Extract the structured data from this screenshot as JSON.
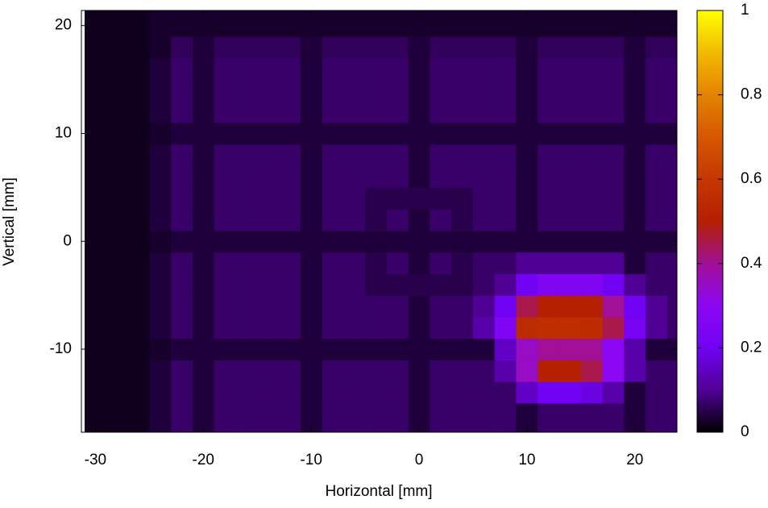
{
  "chart_data": {
    "type": "heatmap",
    "xlabel": "Horizontal [mm]",
    "ylabel": "Vertical [mm]",
    "xlim": [
      -31.3,
      23.9
    ],
    "ylim": [
      -17.7,
      21.4
    ],
    "zlim": [
      0,
      1
    ],
    "xticks": [
      -30,
      -20,
      -10,
      0,
      10,
      20
    ],
    "yticks": [
      -10,
      0,
      10,
      20
    ],
    "zticks": [
      0,
      0.2,
      0.4,
      0.6,
      0.8,
      1
    ],
    "palette": [
      "#000000",
      "#510096",
      "#7202f3",
      "#8c07f3",
      "#a11096",
      "#b42000",
      "#c63700",
      "#d55700",
      "#e48300",
      "#f2ba00",
      "#ffff00"
    ],
    "x": [
      -30,
      -28,
      -26,
      -24,
      -22,
      -20,
      -18,
      -16,
      -14,
      -12,
      -10,
      -8,
      -6,
      -4,
      -2,
      0,
      2,
      4,
      6,
      8,
      10,
      12,
      14,
      16,
      18,
      20,
      22,
      24
    ],
    "y": [
      -18,
      -16,
      -14,
      -12,
      -10,
      -8,
      -6,
      -4,
      -2,
      0,
      2,
      4,
      6,
      8,
      10,
      12,
      14,
      16,
      18,
      20,
      22
    ],
    "z": [
      [
        0.02,
        0.02,
        0.02,
        0.04,
        0.07,
        0.04,
        0.07,
        0.07,
        0.07,
        0.07,
        0.04,
        0.07,
        0.07,
        0.07,
        0.07,
        0.04,
        0.07,
        0.07,
        0.07,
        0.07,
        0.04,
        0.07,
        0.07,
        0.07,
        0.07,
        0.04,
        0.07,
        0.07
      ],
      [
        0.02,
        0.02,
        0.02,
        0.04,
        0.07,
        0.04,
        0.07,
        0.07,
        0.07,
        0.07,
        0.04,
        0.07,
        0.07,
        0.07,
        0.07,
        0.04,
        0.07,
        0.07,
        0.07,
        0.07,
        0.04,
        0.07,
        0.07,
        0.07,
        0.07,
        0.04,
        0.07,
        0.07
      ],
      [
        0.02,
        0.02,
        0.02,
        0.04,
        0.07,
        0.04,
        0.07,
        0.07,
        0.07,
        0.07,
        0.04,
        0.07,
        0.07,
        0.07,
        0.07,
        0.04,
        0.07,
        0.07,
        0.07,
        0.07,
        0.15,
        0.2,
        0.2,
        0.18,
        0.12,
        0.04,
        0.07,
        0.07
      ],
      [
        0.02,
        0.02,
        0.02,
        0.04,
        0.07,
        0.04,
        0.07,
        0.07,
        0.07,
        0.07,
        0.04,
        0.07,
        0.07,
        0.07,
        0.07,
        0.04,
        0.07,
        0.07,
        0.07,
        0.12,
        0.35,
        0.5,
        0.5,
        0.45,
        0.3,
        0.12,
        0.07,
        0.07
      ],
      [
        0.02,
        0.02,
        0.02,
        0.03,
        0.04,
        0.04,
        0.04,
        0.04,
        0.04,
        0.04,
        0.04,
        0.04,
        0.04,
        0.04,
        0.04,
        0.04,
        0.04,
        0.04,
        0.04,
        0.15,
        0.35,
        0.4,
        0.4,
        0.4,
        0.3,
        0.12,
        0.04,
        0.04
      ],
      [
        0.02,
        0.02,
        0.02,
        0.04,
        0.07,
        0.04,
        0.07,
        0.07,
        0.07,
        0.07,
        0.04,
        0.07,
        0.07,
        0.07,
        0.07,
        0.04,
        0.07,
        0.07,
        0.12,
        0.25,
        0.55,
        0.56,
        0.56,
        0.55,
        0.45,
        0.22,
        0.1,
        0.07
      ],
      [
        0.02,
        0.02,
        0.02,
        0.04,
        0.07,
        0.04,
        0.07,
        0.07,
        0.07,
        0.07,
        0.04,
        0.07,
        0.07,
        0.07,
        0.07,
        0.04,
        0.07,
        0.07,
        0.1,
        0.2,
        0.45,
        0.5,
        0.5,
        0.5,
        0.4,
        0.2,
        0.1,
        0.07
      ],
      [
        0.02,
        0.02,
        0.02,
        0.04,
        0.07,
        0.04,
        0.07,
        0.07,
        0.07,
        0.07,
        0.04,
        0.07,
        0.07,
        0.05,
        0.05,
        0.05,
        0.05,
        0.05,
        0.07,
        0.1,
        0.2,
        0.25,
        0.25,
        0.25,
        0.2,
        0.1,
        0.07,
        0.07
      ],
      [
        0.02,
        0.02,
        0.02,
        0.04,
        0.07,
        0.04,
        0.07,
        0.07,
        0.07,
        0.07,
        0.04,
        0.07,
        0.07,
        0.05,
        0.07,
        0.04,
        0.07,
        0.05,
        0.07,
        0.07,
        0.1,
        0.1,
        0.1,
        0.1,
        0.1,
        0.04,
        0.07,
        0.07
      ],
      [
        0.02,
        0.02,
        0.02,
        0.03,
        0.04,
        0.04,
        0.04,
        0.04,
        0.04,
        0.04,
        0.04,
        0.04,
        0.04,
        0.04,
        0.04,
        0.04,
        0.04,
        0.04,
        0.04,
        0.04,
        0.04,
        0.04,
        0.04,
        0.04,
        0.04,
        0.04,
        0.04,
        0.04
      ],
      [
        0.02,
        0.02,
        0.02,
        0.04,
        0.07,
        0.04,
        0.07,
        0.07,
        0.07,
        0.07,
        0.04,
        0.07,
        0.07,
        0.05,
        0.07,
        0.04,
        0.07,
        0.05,
        0.07,
        0.07,
        0.04,
        0.07,
        0.07,
        0.07,
        0.07,
        0.04,
        0.07,
        0.07
      ],
      [
        0.02,
        0.02,
        0.02,
        0.04,
        0.07,
        0.04,
        0.07,
        0.07,
        0.07,
        0.07,
        0.04,
        0.07,
        0.07,
        0.05,
        0.05,
        0.05,
        0.05,
        0.05,
        0.07,
        0.07,
        0.04,
        0.07,
        0.07,
        0.07,
        0.07,
        0.04,
        0.07,
        0.07
      ],
      [
        0.02,
        0.02,
        0.02,
        0.04,
        0.07,
        0.04,
        0.07,
        0.07,
        0.07,
        0.07,
        0.04,
        0.07,
        0.07,
        0.07,
        0.07,
        0.04,
        0.07,
        0.07,
        0.07,
        0.07,
        0.04,
        0.07,
        0.07,
        0.07,
        0.07,
        0.04,
        0.07,
        0.07
      ],
      [
        0.02,
        0.02,
        0.02,
        0.04,
        0.07,
        0.04,
        0.07,
        0.07,
        0.07,
        0.07,
        0.04,
        0.07,
        0.07,
        0.07,
        0.07,
        0.04,
        0.07,
        0.07,
        0.07,
        0.07,
        0.04,
        0.07,
        0.07,
        0.07,
        0.07,
        0.04,
        0.07,
        0.07
      ],
      [
        0.02,
        0.02,
        0.02,
        0.03,
        0.04,
        0.04,
        0.04,
        0.04,
        0.04,
        0.04,
        0.04,
        0.04,
        0.04,
        0.04,
        0.04,
        0.04,
        0.04,
        0.04,
        0.04,
        0.04,
        0.04,
        0.04,
        0.04,
        0.04,
        0.04,
        0.04,
        0.04,
        0.04
      ],
      [
        0.02,
        0.02,
        0.02,
        0.04,
        0.07,
        0.04,
        0.07,
        0.07,
        0.07,
        0.07,
        0.04,
        0.07,
        0.07,
        0.07,
        0.07,
        0.04,
        0.07,
        0.07,
        0.07,
        0.07,
        0.04,
        0.07,
        0.07,
        0.07,
        0.07,
        0.04,
        0.07,
        0.07
      ],
      [
        0.02,
        0.02,
        0.02,
        0.04,
        0.07,
        0.04,
        0.07,
        0.07,
        0.07,
        0.07,
        0.04,
        0.07,
        0.07,
        0.07,
        0.07,
        0.04,
        0.07,
        0.07,
        0.07,
        0.07,
        0.04,
        0.07,
        0.07,
        0.07,
        0.07,
        0.04,
        0.07,
        0.07
      ],
      [
        0.02,
        0.02,
        0.02,
        0.04,
        0.07,
        0.04,
        0.07,
        0.07,
        0.07,
        0.07,
        0.04,
        0.07,
        0.07,
        0.07,
        0.07,
        0.04,
        0.07,
        0.07,
        0.07,
        0.07,
        0.04,
        0.07,
        0.07,
        0.07,
        0.07,
        0.04,
        0.07,
        0.07
      ],
      [
        0.02,
        0.02,
        0.02,
        0.03,
        0.06,
        0.04,
        0.06,
        0.06,
        0.06,
        0.06,
        0.04,
        0.06,
        0.06,
        0.06,
        0.06,
        0.04,
        0.06,
        0.06,
        0.06,
        0.06,
        0.04,
        0.06,
        0.06,
        0.06,
        0.06,
        0.04,
        0.06,
        0.06
      ],
      [
        0.02,
        0.02,
        0.02,
        0.03,
        0.03,
        0.03,
        0.03,
        0.03,
        0.03,
        0.03,
        0.03,
        0.03,
        0.03,
        0.03,
        0.03,
        0.03,
        0.03,
        0.03,
        0.03,
        0.03,
        0.03,
        0.03,
        0.03,
        0.03,
        0.03,
        0.03,
        0.03,
        0.03
      ],
      [
        0.02,
        0.02,
        0.02,
        0.03,
        0.03,
        0.03,
        0.03,
        0.03,
        0.03,
        0.03,
        0.03,
        0.03,
        0.03,
        0.03,
        0.03,
        0.03,
        0.03,
        0.03,
        0.03,
        0.03,
        0.03,
        0.03,
        0.03,
        0.03,
        0.03,
        0.03,
        0.03,
        0.03
      ]
    ]
  }
}
